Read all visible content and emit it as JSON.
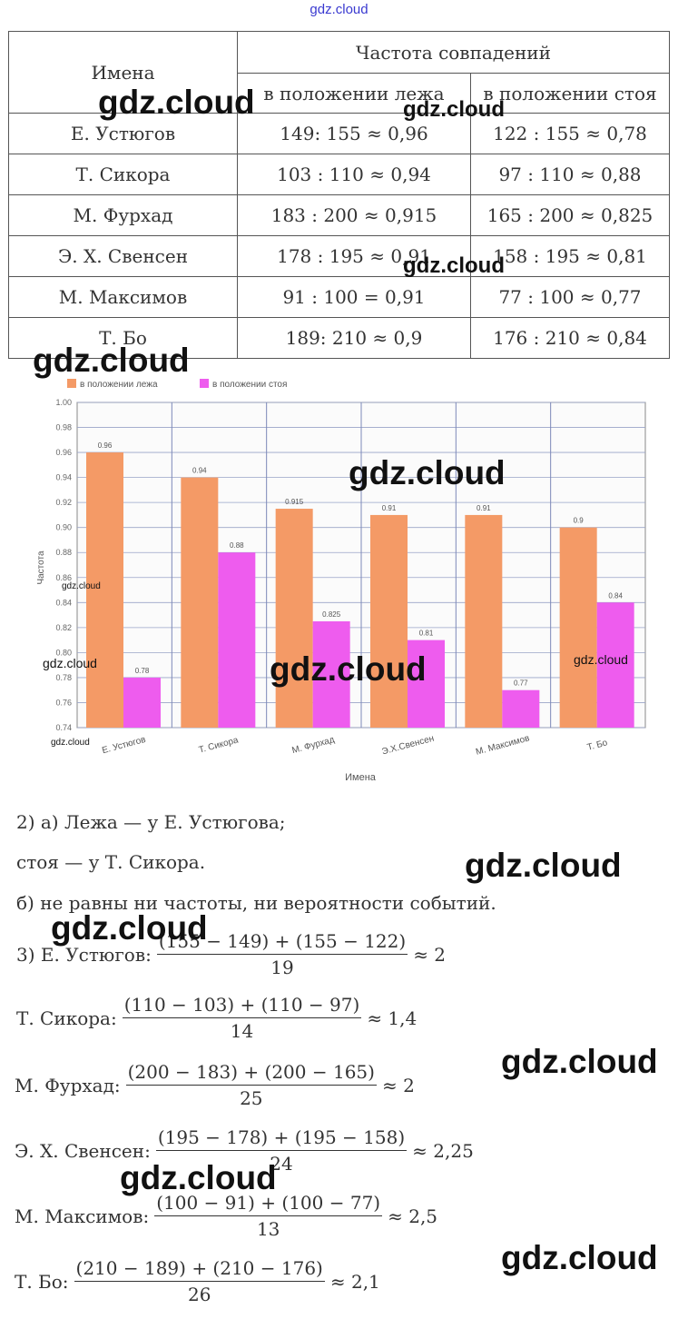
{
  "watermark_top": "gdz.cloud",
  "watermark": "gdz.cloud",
  "table": {
    "header_names": "Имена",
    "header_freq": "Частота совпадений",
    "sub_lying": "в положении лежа",
    "sub_standing": "в положении стоя",
    "rows": [
      {
        "name": "Е. Устюгов",
        "lying": "149: 155 ≈ 0,96",
        "standing": "122 : 155 ≈ 0,78"
      },
      {
        "name": "Т. Сикора",
        "lying": "103 : 110 ≈ 0,94",
        "standing": "97 : 110 ≈ 0,88"
      },
      {
        "name": "М. Фурхад",
        "lying": "183 : 200 ≈ 0,915",
        "standing": "165 : 200 ≈ 0,825"
      },
      {
        "name": "Э. Х. Свенсен",
        "lying": "178 : 195 ≈ 0,91",
        "standing": "158 : 195 ≈ 0,81"
      },
      {
        "name": "М. Максимов",
        "lying": "91 : 100 = 0,91",
        "standing": "77 : 100 ≈ 0,77"
      },
      {
        "name": "Т. Бо",
        "lying": "189: 210 ≈ 0,9",
        "standing": "176 : 210 ≈ 0,84"
      }
    ]
  },
  "chart_data": {
    "type": "bar",
    "categories": [
      "Е. Устюгов",
      "Т. Сикора",
      "М. Фурхад",
      "Э.Х.Свенсен",
      "М. Максимов",
      "Т. Бо"
    ],
    "series": [
      {
        "name": "в положении лежа",
        "values": [
          0.96,
          0.94,
          0.915,
          0.91,
          0.91,
          0.9
        ],
        "labels": [
          "0.96",
          "0.94",
          "0.915",
          "0.91",
          "0.91",
          "0.9"
        ]
      },
      {
        "name": "в положении стоя",
        "values": [
          0.78,
          0.88,
          0.825,
          0.81,
          0.77,
          0.84
        ],
        "labels": [
          "0.78",
          "0.88",
          "0.825",
          "0.81",
          "0.77",
          "0.84"
        ]
      }
    ],
    "xlabel": "Имена",
    "ylabel": "Частота",
    "ylim": [
      0.74,
      1.0
    ],
    "yticks": [
      "0.74",
      "0.76",
      "0.78",
      "0.80",
      "0.82",
      "0.84",
      "0.86",
      "0.88",
      "0.90",
      "0.92",
      "0.94",
      "0.96",
      "0.98",
      "1.00"
    ],
    "grid": true,
    "legend_position": "top-left",
    "colors": {
      "lying": "#f49a66",
      "standing": "#ee5cee"
    }
  },
  "solution": {
    "q2a_line1": "2) а) Лежа — у Е. Устюгова;",
    "q2a_line2": "стоя — у Т. Сикора.",
    "q2b": "б) не равны ни частоты, ни вероятности событий.",
    "q3": [
      {
        "label": "3) Е. Устюгов:",
        "num": "(155 − 149) + (155 − 122)",
        "den": "19",
        "result": "≈ 2"
      },
      {
        "label": "Т. Сикора:",
        "num": "(110 − 103) + (110 − 97)",
        "den": "14",
        "result": "≈ 1,4"
      },
      {
        "label": "М. Фурхад:",
        "num": "(200 − 183) + (200 − 165)",
        "den": "25",
        "result": "≈ 2"
      },
      {
        "label": "Э. Х. Свенсен:",
        "num": "(195 − 178) + (195 − 158)",
        "den": "24",
        "result": "≈ 2,25"
      },
      {
        "label": "М. Максимов:",
        "num": "(100 − 91) + (100 − 77)",
        "den": "13",
        "result": "≈ 2,5"
      },
      {
        "label": "Т. Бо:",
        "num": "(210 − 189) + (210 − 176)",
        "den": "26",
        "result": "≈ 2,1"
      }
    ]
  }
}
